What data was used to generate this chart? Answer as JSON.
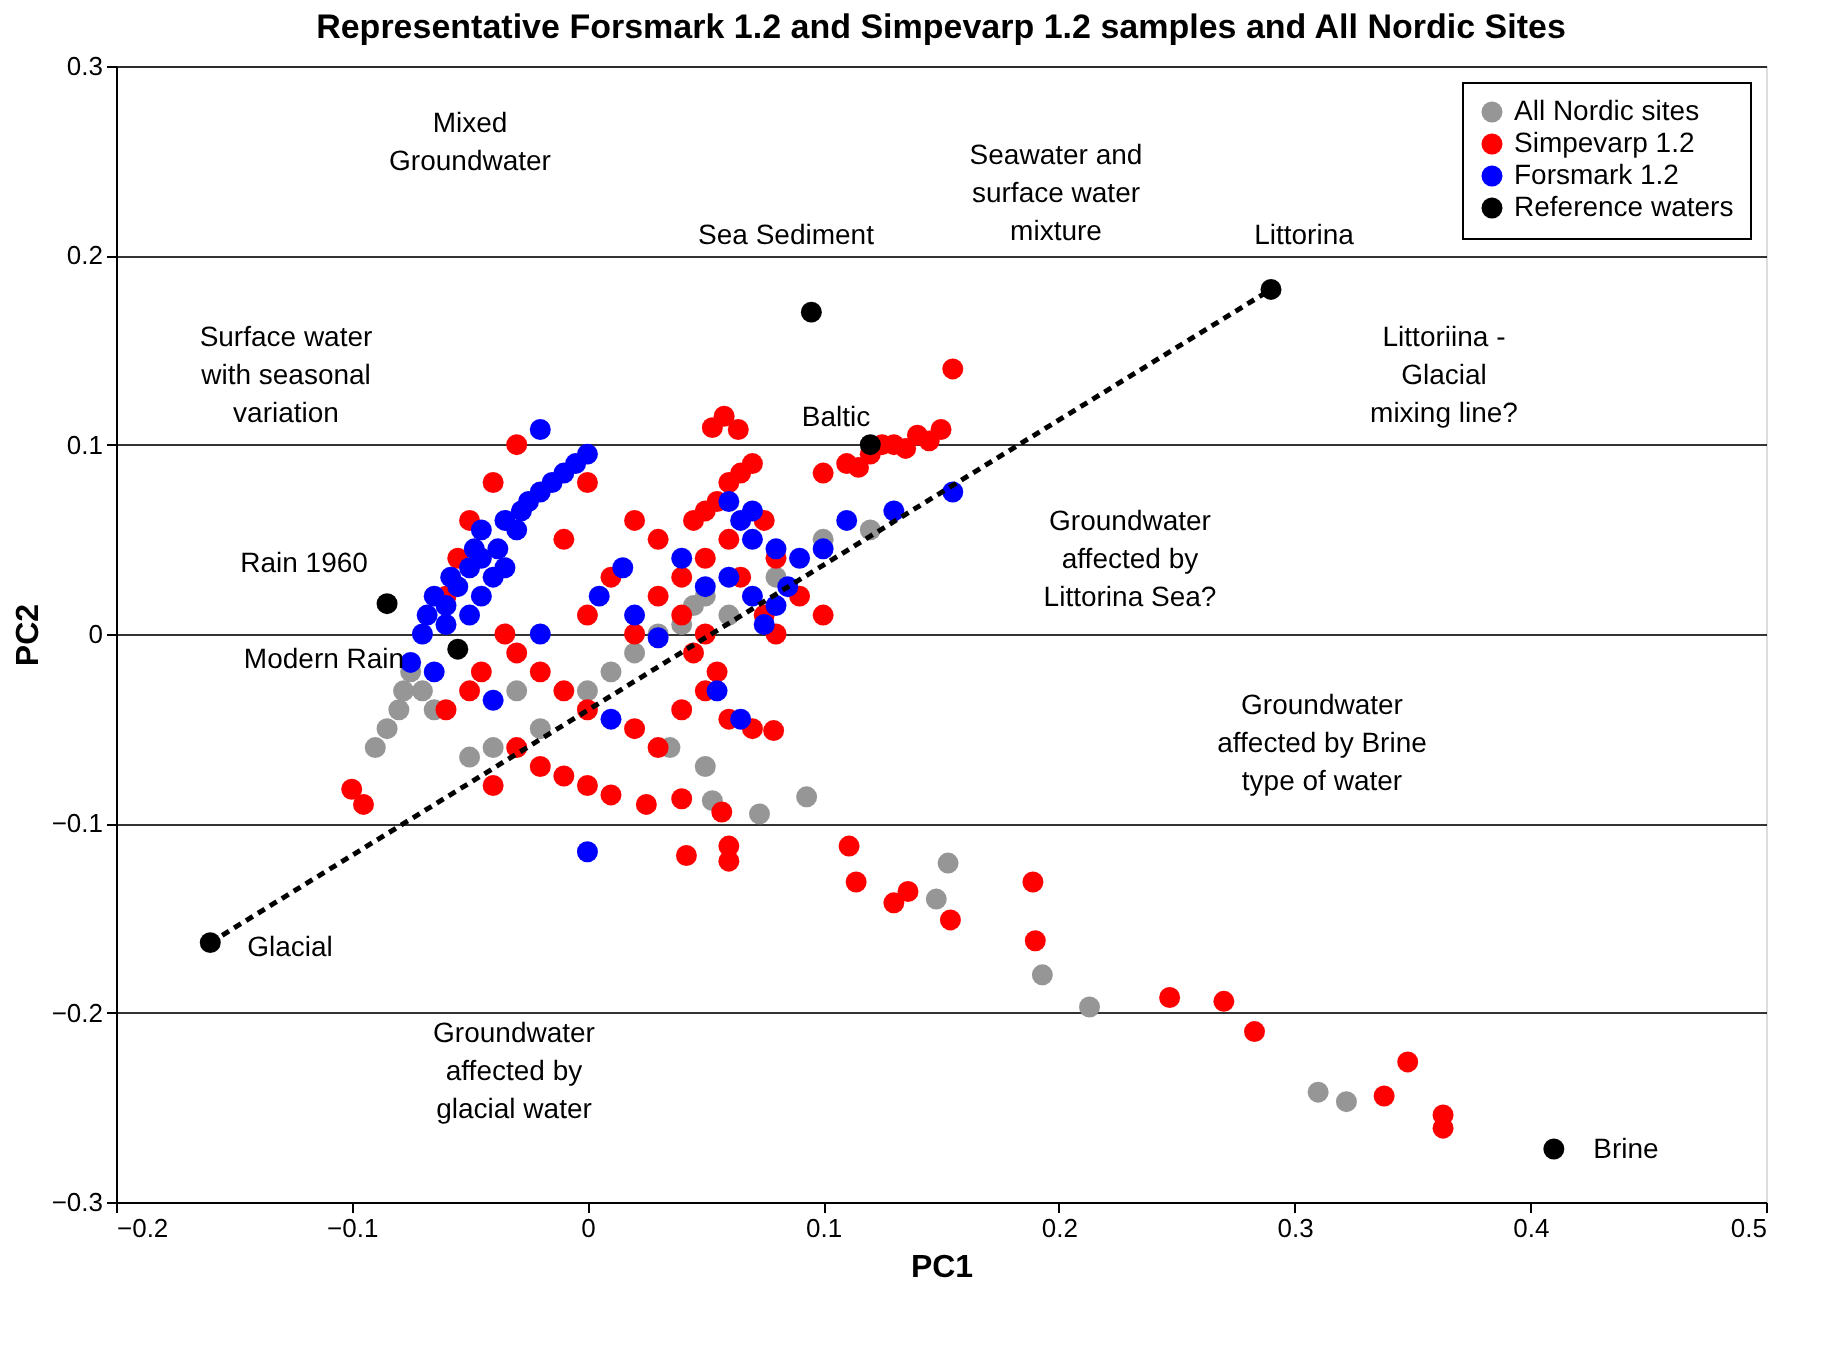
{
  "chart_data": {
    "type": "scatter",
    "title": "Representative Forsmark 1.2 and Simpevarp 1.2 samples and All Nordic Sites",
    "xlabel": "PC1",
    "ylabel": "PC2",
    "xlim": [
      -0.2,
      0.5
    ],
    "xticks": [
      -0.2,
      -0.1,
      0,
      0.1,
      0.2,
      0.3,
      0.4,
      0.5
    ],
    "ylim": [
      -0.3,
      0.3
    ],
    "yticks": [
      -0.3,
      -0.2,
      -0.1,
      0,
      0.1,
      0.2,
      0.3
    ],
    "grid": "y",
    "legend": "top right",
    "marker": "circle",
    "series": [
      {
        "name": "All Nordic sites",
        "color": "#969696",
        "x": [
          -0.09,
          -0.085,
          -0.08,
          -0.078,
          -0.075,
          -0.07,
          -0.065,
          -0.03,
          -0.02,
          0.0,
          0.01,
          0.02,
          0.03,
          0.04,
          0.045,
          0.05,
          0.06,
          0.07,
          0.08,
          0.1,
          0.12,
          0.035,
          0.05,
          -0.04,
          -0.05,
          0.093,
          0.153,
          0.148,
          0.193,
          0.213,
          0.31,
          0.322,
          0.073,
          0.053
        ],
        "values": [
          -0.06,
          -0.05,
          -0.04,
          -0.03,
          -0.02,
          -0.03,
          -0.04,
          -0.03,
          -0.05,
          -0.03,
          -0.02,
          -0.01,
          0.0,
          0.005,
          0.015,
          0.02,
          0.01,
          null,
          0.03,
          0.05,
          0.055,
          -0.06,
          -0.07,
          -0.06,
          -0.065,
          -0.086,
          -0.121,
          -0.14,
          -0.18,
          -0.197,
          -0.242,
          -0.247,
          -0.095,
          -0.088
        ]
      },
      {
        "name": "Simpevarp 1.2",
        "color": "#ff0000",
        "x": [
          0.1,
          0.11,
          0.12,
          0.13,
          0.14,
          0.15,
          0.155,
          0.125,
          0.135,
          0.145,
          0.115,
          0.058,
          0.053,
          0.064,
          0.065,
          0.07,
          0.06,
          0.055,
          0.05,
          0.045,
          0.06,
          0.05,
          0.04,
          0.03,
          0.04,
          0.05,
          0.045,
          0.055,
          0.05,
          0.04,
          0.06,
          0.07,
          0.03,
          0.02,
          0.0,
          -0.01,
          -0.02,
          -0.03,
          -0.035,
          -0.045,
          -0.05,
          -0.06,
          -0.03,
          -0.02,
          -0.01,
          0.0,
          0.01,
          0.025,
          -0.04,
          -0.1,
          -0.095,
          -0.06,
          -0.055,
          -0.05,
          -0.04,
          -0.03,
          0.0,
          0.02,
          0.03,
          0.075,
          0.08,
          0.09,
          0.1,
          0.08,
          0.075,
          0.065,
          0.0,
          0.01,
          0.02,
          -0.01,
          0.111,
          0.114,
          0.136,
          0.13,
          0.154,
          0.19,
          0.189,
          0.247,
          0.27,
          0.283,
          0.348,
          0.338,
          0.363,
          0.363,
          0.06,
          0.06,
          0.042,
          0.057,
          0.04,
          0.079
        ],
        "values": [
          0.085,
          0.09,
          0.095,
          0.1,
          0.105,
          0.108,
          0.14,
          0.1,
          0.098,
          0.102,
          0.088,
          0.115,
          0.109,
          0.108,
          0.085,
          0.09,
          0.08,
          0.07,
          0.065,
          0.06,
          0.05,
          0.04,
          0.03,
          0.02,
          0.01,
          0.0,
          -0.01,
          -0.02,
          -0.03,
          -0.04,
          -0.045,
          -0.05,
          -0.06,
          -0.05,
          -0.04,
          -0.03,
          -0.02,
          -0.01,
          0.0,
          -0.02,
          -0.03,
          -0.04,
          -0.06,
          -0.07,
          -0.075,
          -0.08,
          -0.085,
          -0.09,
          -0.08,
          -0.082,
          -0.09,
          0.02,
          0.04,
          0.06,
          0.08,
          0.1,
          0.08,
          0.06,
          0.05,
          0.06,
          0.04,
          0.02,
          0.01,
          0.0,
          0.01,
          0.03,
          0.01,
          0.03,
          0.0,
          0.05,
          -0.112,
          -0.131,
          -0.136,
          -0.142,
          -0.151,
          -0.162,
          -0.131,
          -0.192,
          -0.194,
          -0.21,
          -0.226,
          -0.244,
          -0.254,
          -0.261,
          -0.112,
          -0.12,
          -0.117,
          -0.094,
          -0.087,
          -0.051
        ]
      },
      {
        "name": "Forsmark 1.2",
        "color": "#0000ff",
        "x": [
          -0.075,
          -0.07,
          -0.068,
          -0.065,
          -0.06,
          -0.058,
          -0.055,
          -0.05,
          -0.048,
          -0.045,
          -0.04,
          -0.038,
          -0.035,
          -0.03,
          -0.028,
          -0.025,
          -0.02,
          -0.015,
          -0.01,
          -0.005,
          0.0,
          -0.06,
          -0.05,
          -0.045,
          -0.04,
          -0.035,
          -0.045,
          -0.02,
          0.015,
          0.005,
          0.02,
          0.03,
          0.04,
          0.05,
          0.06,
          0.07,
          0.08,
          0.09,
          0.1,
          0.11,
          0.13,
          0.155,
          0.08,
          0.075,
          0.085,
          0.065,
          0.06,
          0.07,
          0.055,
          0.065,
          -0.065,
          0.0,
          0.01,
          -0.04,
          0.07,
          -0.02
        ],
        "values": [
          -0.015,
          0.0,
          0.01,
          0.02,
          0.015,
          0.03,
          0.025,
          0.035,
          0.045,
          0.04,
          null,
          0.045,
          0.06,
          0.055,
          0.065,
          0.07,
          0.075,
          0.08,
          0.085,
          0.09,
          0.095,
          0.005,
          0.01,
          0.02,
          0.03,
          0.035,
          0.055,
          0.108,
          0.035,
          0.02,
          0.01,
          -0.002,
          0.04,
          0.025,
          0.03,
          0.05,
          0.045,
          0.04,
          0.045,
          0.06,
          0.065,
          0.075,
          0.015,
          0.005,
          0.025,
          0.06,
          0.07,
          0.065,
          -0.03,
          -0.045,
          -0.02,
          -0.115,
          -0.045,
          -0.035,
          0.02,
          0.0
        ]
      },
      {
        "name": "Reference waters",
        "color": "#000000",
        "x": [
          0.29,
          0.095,
          0.12,
          -0.085,
          -0.055,
          -0.16,
          0.41
        ],
        "values": [
          0.182,
          0.17,
          0.1,
          0.016,
          -0.008,
          -0.163,
          -0.272
        ]
      },
      {
        "type": "line",
        "color": "#000000",
        "line_style": "dashed",
        "marker": "none",
        "x": [
          -0.16,
          0.29
        ],
        "values": [
          -0.163,
          0.182
        ]
      }
    ],
    "annotations": [
      "Sea Sediment",
      "Littorina",
      "Baltic",
      "Rain 1960",
      "Modern Rain",
      "Glacial",
      "Brine",
      "Mixed\nGroundwater",
      "Seawater and\nsurface water\nmixture",
      "Surface water\nwith seasonal\nvariation",
      "Littoriina -\nGlacial\nmixing line?",
      "Groundwater\naffected by\nLittorina Sea?",
      "Groundwater\naffected by Brine\ntype of water",
      "Groundwater\naffected by\nglacial water"
    ]
  }
}
